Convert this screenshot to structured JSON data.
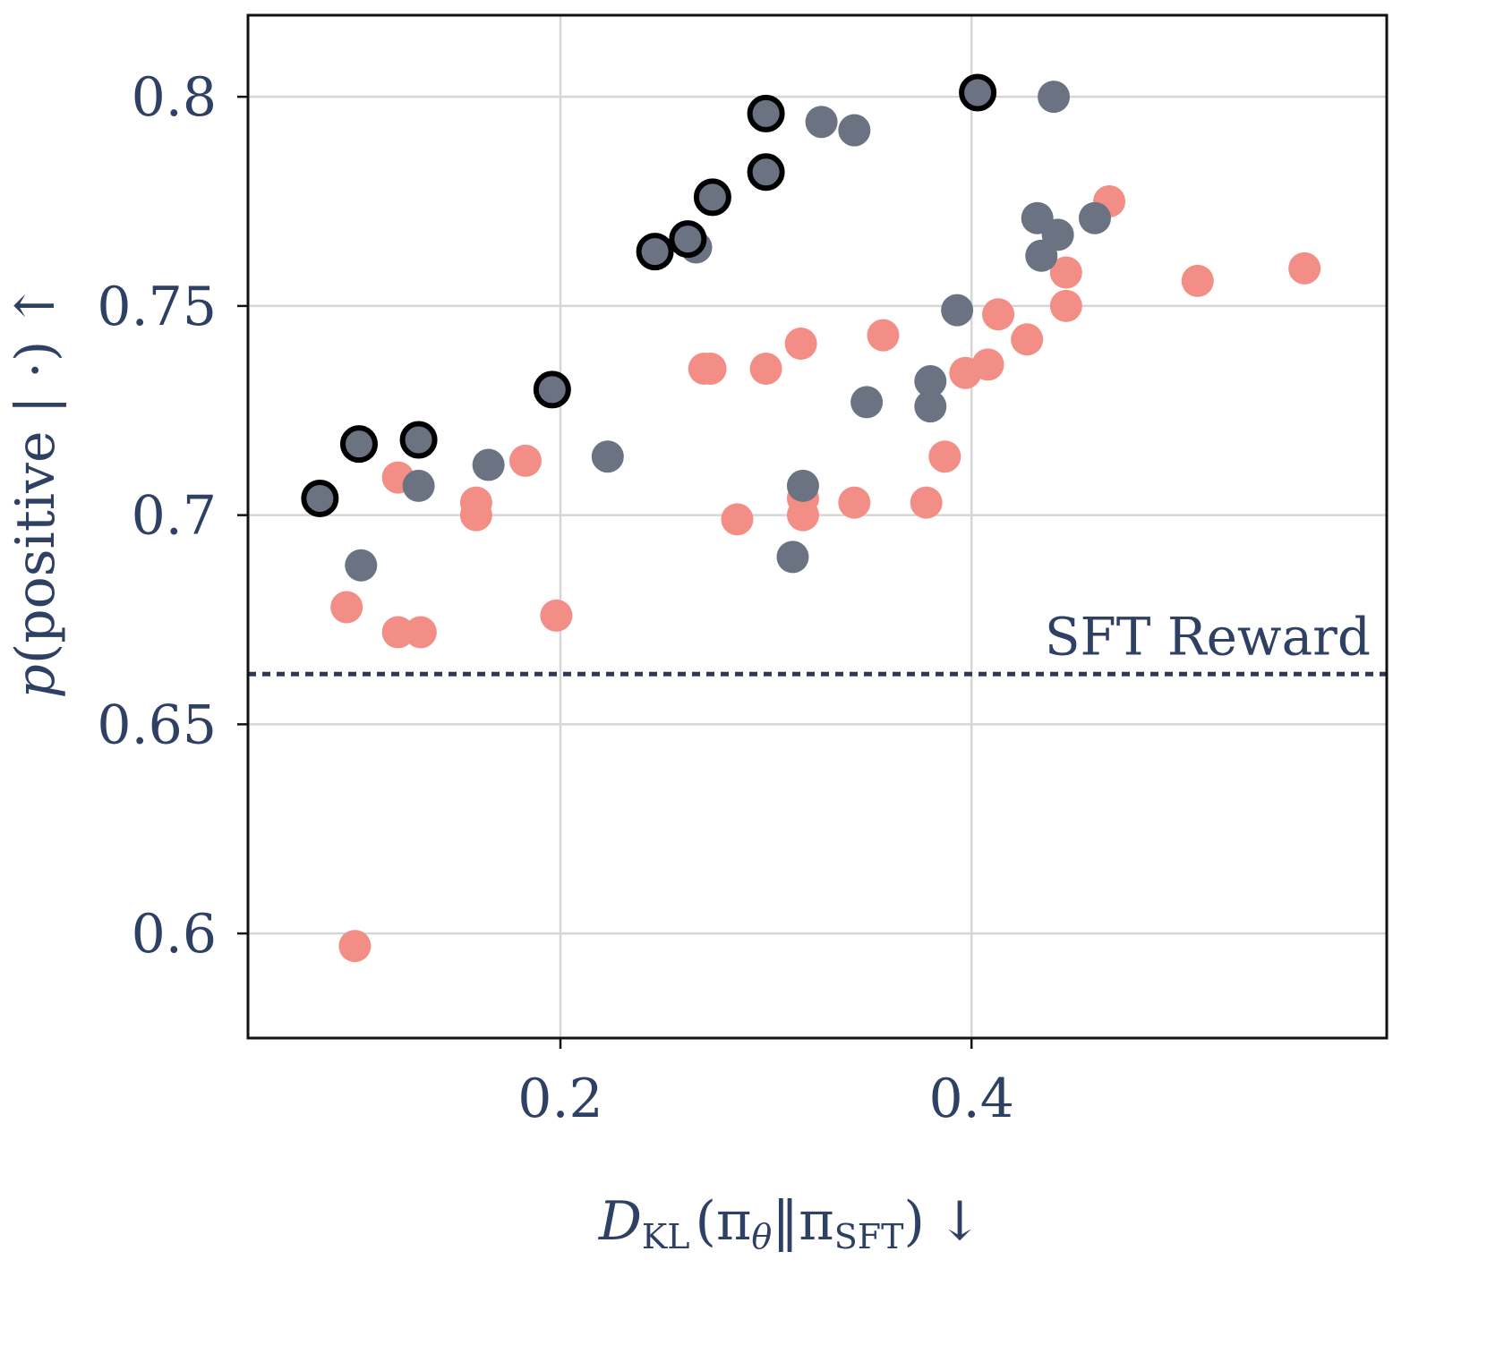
{
  "chart_data": {
    "type": "scatter",
    "title": "",
    "xlabel": {
      "main": "D",
      "sub": "KL",
      "args": "(π",
      "theta": "θ",
      "sep": "‖π",
      "sft": "SFT",
      "close": ")",
      "arrow": "↓"
    },
    "ylabel": {
      "var": "p",
      "text": "(positive | ·)",
      "arrow": "↑"
    },
    "xlim": [
      0.048,
      0.602
    ],
    "ylim": [
      0.575,
      0.8195
    ],
    "xticks": [
      0.2,
      0.4
    ],
    "xtick_labels": [
      "0.2",
      "0.4"
    ],
    "yticks": [
      0.6,
      0.65,
      0.7,
      0.75,
      0.8
    ],
    "ytick_labels": [
      "0.6",
      "0.65",
      "0.7",
      "0.75",
      "0.8"
    ],
    "grid": true,
    "reference_line": {
      "label": "SFT Reward",
      "y": 0.662,
      "style": "dotted",
      "color": "#2e3a55"
    },
    "colors": {
      "salmon": "#f28e86",
      "gray": "#6b7382",
      "frontier_edge": "#000000",
      "text": "#2e4063"
    },
    "series": [
      {
        "name": "salmon",
        "color": "#f28e86",
        "points": [
          [
            0.1,
            0.597
          ],
          [
            0.096,
            0.678
          ],
          [
            0.121,
            0.672
          ],
          [
            0.132,
            0.672
          ],
          [
            0.121,
            0.709
          ],
          [
            0.159,
            0.703
          ],
          [
            0.159,
            0.7
          ],
          [
            0.183,
            0.713
          ],
          [
            0.198,
            0.676
          ],
          [
            0.27,
            0.735
          ],
          [
            0.273,
            0.735
          ],
          [
            0.286,
            0.699
          ],
          [
            0.3,
            0.735
          ],
          [
            0.317,
            0.741
          ],
          [
            0.318,
            0.704
          ],
          [
            0.318,
            0.7
          ],
          [
            0.343,
            0.703
          ],
          [
            0.357,
            0.743
          ],
          [
            0.378,
            0.703
          ],
          [
            0.387,
            0.714
          ],
          [
            0.397,
            0.734
          ],
          [
            0.408,
            0.736
          ],
          [
            0.413,
            0.748
          ],
          [
            0.427,
            0.742
          ],
          [
            0.446,
            0.758
          ],
          [
            0.446,
            0.75
          ],
          [
            0.467,
            0.775
          ],
          [
            0.51,
            0.756
          ],
          [
            0.562,
            0.759
          ]
        ]
      },
      {
        "name": "gray",
        "color": "#6b7382",
        "points": [
          [
            0.103,
            0.688
          ],
          [
            0.131,
            0.707
          ],
          [
            0.165,
            0.712
          ],
          [
            0.223,
            0.714
          ],
          [
            0.266,
            0.764
          ],
          [
            0.313,
            0.69
          ],
          [
            0.318,
            0.707
          ],
          [
            0.327,
            0.794
          ],
          [
            0.343,
            0.792
          ],
          [
            0.349,
            0.727
          ],
          [
            0.38,
            0.732
          ],
          [
            0.38,
            0.726
          ],
          [
            0.393,
            0.749
          ],
          [
            0.44,
            0.8
          ],
          [
            0.432,
            0.771
          ],
          [
            0.442,
            0.767
          ],
          [
            0.434,
            0.762
          ],
          [
            0.46,
            0.771
          ]
        ]
      },
      {
        "name": "gray-frontier",
        "color": "#6b7382",
        "outlined": true,
        "points": [
          [
            0.083,
            0.704
          ],
          [
            0.102,
            0.717
          ],
          [
            0.131,
            0.718
          ],
          [
            0.196,
            0.73
          ],
          [
            0.246,
            0.763
          ],
          [
            0.262,
            0.766
          ],
          [
            0.274,
            0.776
          ],
          [
            0.3,
            0.782
          ],
          [
            0.3,
            0.796
          ],
          [
            0.403,
            0.801
          ]
        ]
      }
    ]
  }
}
